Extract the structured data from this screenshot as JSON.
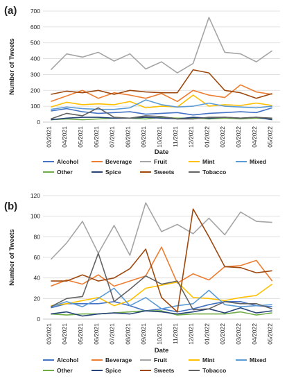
{
  "chart_data": [
    {
      "type": "line",
      "panel_label": "(a)",
      "xlabel": "Date",
      "ylabel": "Number of Tweets",
      "ylim": [
        0,
        700
      ],
      "yticks": [
        0,
        100,
        200,
        300,
        400,
        500,
        600,
        700
      ],
      "grid": "horizontal",
      "legend_placement": "bottom",
      "x": [
        "03/2021",
        "04/2021",
        "05/2021",
        "06/2021",
        "07/2021",
        "08/2021",
        "09/2021",
        "10/2021",
        "11/2021",
        "12/2021",
        "01/2022",
        "02/2022",
        "03/2022",
        "04/2022",
        "05/2022"
      ],
      "series": [
        {
          "name": "Alcohol",
          "color": "#4472C4",
          "values": [
            70,
            85,
            65,
            55,
            60,
            65,
            50,
            55,
            60,
            45,
            55,
            60,
            65,
            60,
            90
          ]
        },
        {
          "name": "Beverage",
          "color": "#ED7D31",
          "values": [
            130,
            165,
            200,
            150,
            185,
            170,
            150,
            180,
            130,
            200,
            170,
            155,
            235,
            190,
            175
          ]
        },
        {
          "name": "Fruit",
          "color": "#A5A5A5",
          "values": [
            330,
            430,
            410,
            440,
            385,
            430,
            335,
            380,
            310,
            370,
            660,
            440,
            430,
            380,
            450
          ]
        },
        {
          "name": "Mint",
          "color": "#FFC000",
          "values": [
            95,
            125,
            110,
            115,
            110,
            130,
            90,
            100,
            95,
            170,
            100,
            110,
            105,
            120,
            105
          ]
        },
        {
          "name": "Mixed",
          "color": "#5B9BD5",
          "values": [
            80,
            95,
            85,
            80,
            80,
            90,
            140,
            110,
            95,
            100,
            120,
            100,
            95,
            90,
            100
          ]
        },
        {
          "name": "Other",
          "color": "#70AD47",
          "values": [
            15,
            20,
            15,
            20,
            25,
            25,
            20,
            30,
            25,
            25,
            20,
            25,
            20,
            25,
            20
          ]
        },
        {
          "name": "Spice",
          "color": "#264478",
          "values": [
            15,
            25,
            30,
            30,
            25,
            25,
            30,
            25,
            20,
            30,
            25,
            30,
            25,
            30,
            15
          ]
        },
        {
          "name": "Sweets",
          "color": "#9E480E",
          "values": [
            175,
            195,
            185,
            200,
            175,
            200,
            190,
            185,
            185,
            330,
            310,
            200,
            185,
            150,
            180
          ]
        },
        {
          "name": "Tobacco",
          "color": "#636363",
          "values": [
            20,
            55,
            40,
            90,
            30,
            25,
            40,
            35,
            20,
            20,
            30,
            30,
            25,
            30,
            25
          ]
        }
      ]
    },
    {
      "type": "line",
      "panel_label": "(b)",
      "xlabel": "Date",
      "ylabel": "Number of Tweets",
      "ylim": [
        0,
        120
      ],
      "yticks": [
        0,
        20,
        40,
        60,
        80,
        100,
        120
      ],
      "grid": "horizontal",
      "legend_placement": "bottom",
      "x": [
        "03/2021",
        "04/2021",
        "05/2021",
        "06/2021",
        "07/2021",
        "08/2021",
        "09/2021",
        "10/2021",
        "11/2021",
        "12/2021",
        "01/2022",
        "02/2022",
        "03/2022",
        "04/2022",
        "05/2022"
      ],
      "series": [
        {
          "name": "Alcohol",
          "color": "#4472C4",
          "values": [
            11,
            15,
            15,
            15,
            17,
            13,
            8,
            10,
            7,
            10,
            14,
            17,
            17,
            13,
            12
          ]
        },
        {
          "name": "Beverage",
          "color": "#ED7D31",
          "values": [
            32,
            38,
            34,
            43,
            32,
            37,
            42,
            70,
            35,
            44,
            38,
            51,
            52,
            57,
            37
          ]
        },
        {
          "name": "Fruit",
          "color": "#A5A5A5",
          "values": [
            58,
            74,
            95,
            64,
            91,
            62,
            113,
            85,
            92,
            83,
            98,
            82,
            104,
            95,
            94
          ]
        },
        {
          "name": "Mint",
          "color": "#FFC000",
          "values": [
            13,
            15,
            18,
            21,
            13,
            18,
            30,
            33,
            36,
            21,
            20,
            18,
            21,
            23,
            34
          ]
        },
        {
          "name": "Mixed",
          "color": "#5B9BD5",
          "values": [
            12,
            17,
            12,
            20,
            30,
            13,
            21,
            10,
            13,
            15,
            28,
            14,
            12,
            13,
            14
          ]
        },
        {
          "name": "Other",
          "color": "#70AD47",
          "values": [
            5,
            4,
            5,
            5,
            6,
            7,
            8,
            8,
            4,
            5,
            5,
            5,
            7,
            4,
            6
          ]
        },
        {
          "name": "Spice",
          "color": "#264478",
          "values": [
            5,
            7,
            3,
            5,
            6,
            5,
            8,
            7,
            5,
            7,
            10,
            6,
            11,
            6,
            8
          ]
        },
        {
          "name": "Sweets",
          "color": "#9E480E",
          "values": [
            37,
            37,
            43,
            37,
            40,
            49,
            68,
            21,
            7,
            107,
            80,
            51,
            50,
            45,
            47
          ]
        },
        {
          "name": "Tobacco",
          "color": "#636363",
          "values": [
            12,
            20,
            22,
            64,
            17,
            29,
            42,
            34,
            37,
            9,
            10,
            17,
            15,
            15,
            10
          ]
        }
      ]
    }
  ]
}
